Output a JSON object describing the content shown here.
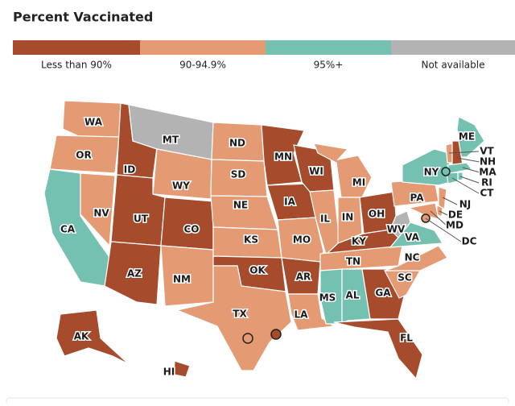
{
  "header": {
    "title": "Percent Vaccinated"
  },
  "legend": [
    {
      "label": "Less than 90%",
      "color": "#a64b2b"
    },
    {
      "label": "90-94.9%",
      "color": "#e49a73"
    },
    {
      "label": "95%+",
      "color": "#74c1b1"
    },
    {
      "label": "Not available",
      "color": "#b3b3b3"
    }
  ],
  "states": [
    {
      "abbr": "WA",
      "category": "90-94.9%"
    },
    {
      "abbr": "OR",
      "category": "90-94.9%"
    },
    {
      "abbr": "CA",
      "category": "95%+"
    },
    {
      "abbr": "NV",
      "category": "90-94.9%"
    },
    {
      "abbr": "ID",
      "category": "Less than 90%"
    },
    {
      "abbr": "MT",
      "category": "Not available"
    },
    {
      "abbr": "WY",
      "category": "90-94.9%"
    },
    {
      "abbr": "UT",
      "category": "Less than 90%"
    },
    {
      "abbr": "CO",
      "category": "Less than 90%"
    },
    {
      "abbr": "AZ",
      "category": "Less than 90%"
    },
    {
      "abbr": "NM",
      "category": "90-94.9%"
    },
    {
      "abbr": "ND",
      "category": "90-94.9%"
    },
    {
      "abbr": "SD",
      "category": "90-94.9%"
    },
    {
      "abbr": "NE",
      "category": "90-94.9%"
    },
    {
      "abbr": "KS",
      "category": "90-94.9%"
    },
    {
      "abbr": "OK",
      "category": "Less than 90%"
    },
    {
      "abbr": "TX",
      "category": "90-94.9%"
    },
    {
      "abbr": "MN",
      "category": "Less than 90%"
    },
    {
      "abbr": "IA",
      "category": "Less than 90%"
    },
    {
      "abbr": "MO",
      "category": "90-94.9%"
    },
    {
      "abbr": "AR",
      "category": "Less than 90%"
    },
    {
      "abbr": "LA",
      "category": "90-94.9%"
    },
    {
      "abbr": "WI",
      "category": "Less than 90%"
    },
    {
      "abbr": "IL",
      "category": "90-94.9%"
    },
    {
      "abbr": "MI",
      "category": "90-94.9%"
    },
    {
      "abbr": "IN",
      "category": "90-94.9%"
    },
    {
      "abbr": "OH",
      "category": "Less than 90%"
    },
    {
      "abbr": "KY",
      "category": "Less than 90%"
    },
    {
      "abbr": "TN",
      "category": "90-94.9%"
    },
    {
      "abbr": "MS",
      "category": "95%+"
    },
    {
      "abbr": "AL",
      "category": "95%+"
    },
    {
      "abbr": "GA",
      "category": "Less than 90%"
    },
    {
      "abbr": "FL",
      "category": "Less than 90%"
    },
    {
      "abbr": "SC",
      "category": "90-94.9%"
    },
    {
      "abbr": "NC",
      "category": "90-94.9%"
    },
    {
      "abbr": "VA",
      "category": "95%+"
    },
    {
      "abbr": "WV",
      "category": "Not available"
    },
    {
      "abbr": "PA",
      "category": "90-94.9%"
    },
    {
      "abbr": "NY",
      "category": "95%+"
    },
    {
      "abbr": "ME",
      "category": "95%+"
    },
    {
      "abbr": "VT",
      "category": "90-94.9%"
    },
    {
      "abbr": "NH",
      "category": "Less than 90%"
    },
    {
      "abbr": "MA",
      "category": "95%+"
    },
    {
      "abbr": "RI",
      "category": "95%+"
    },
    {
      "abbr": "CT",
      "category": "95%+"
    },
    {
      "abbr": "NJ",
      "category": "90-94.9%"
    },
    {
      "abbr": "DE",
      "category": "90-94.9%"
    },
    {
      "abbr": "MD",
      "category": "90-94.9%"
    },
    {
      "abbr": "DC",
      "category": "90-94.9%"
    },
    {
      "abbr": "AK",
      "category": "Less than 90%"
    },
    {
      "abbr": "HI",
      "category": "Less than 90%"
    }
  ]
}
